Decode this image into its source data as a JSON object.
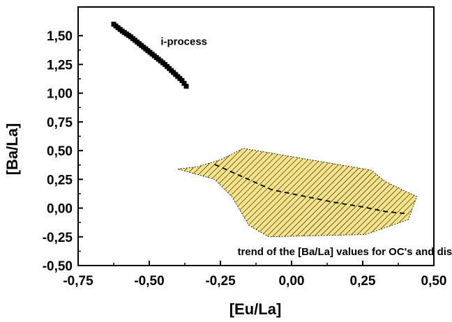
{
  "chart_data": {
    "type": "scatter",
    "title": "",
    "xlabel": "[Eu/La]",
    "ylabel": "[Ba/La]",
    "xlim": [
      -0.75,
      0.5
    ],
    "ylim": [
      -0.5,
      1.75
    ],
    "xticks": [
      -0.75,
      -0.5,
      -0.25,
      0.0,
      0.25,
      0.5
    ],
    "yticks": [
      -0.5,
      -0.25,
      0.0,
      0.25,
      0.5,
      0.75,
      1.0,
      1.25,
      1.5
    ],
    "xtick_labels": [
      "-0,75",
      "-0,50",
      "-0,25",
      "0,00",
      "0,25",
      "0,50"
    ],
    "ytick_labels": [
      "-0,50",
      "-0,25",
      "0,00",
      "0,25",
      "0,50",
      "0,75",
      "1,00",
      "1,25",
      "1,50"
    ],
    "grid": false,
    "series": [
      {
        "kind": "points",
        "marker": "square",
        "color": "#000000",
        "x": [
          -0.625,
          -0.61,
          -0.595,
          -0.58,
          -0.565,
          -0.55,
          -0.535,
          -0.52,
          -0.505,
          -0.49,
          -0.475,
          -0.46,
          -0.445,
          -0.43,
          -0.415,
          -0.4,
          -0.385,
          -0.37
        ],
        "y": [
          1.6,
          1.57,
          1.54,
          1.515,
          1.49,
          1.46,
          1.43,
          1.4,
          1.37,
          1.34,
          1.31,
          1.28,
          1.25,
          1.215,
          1.18,
          1.145,
          1.11,
          1.06
        ]
      },
      {
        "kind": "hatched_region",
        "fill": "#f5e38a",
        "hatch_color": "#000000",
        "x": [
          -0.4,
          -0.33,
          -0.25,
          -0.17,
          0.28,
          0.33,
          0.44,
          0.41,
          0.26,
          -0.08,
          -0.15,
          -0.21,
          -0.27
        ],
        "y": [
          0.34,
          0.36,
          0.42,
          0.52,
          0.33,
          0.23,
          0.1,
          -0.1,
          -0.23,
          -0.25,
          -0.15,
          0.1,
          0.25
        ]
      },
      {
        "kind": "dashed_trend",
        "color": "#000000",
        "x": [
          -0.27,
          -0.17,
          -0.07,
          0.05,
          0.15,
          0.25,
          0.33,
          0.41
        ],
        "y": [
          0.38,
          0.27,
          0.16,
          0.1,
          0.05,
          0.01,
          -0.03,
          -0.05
        ]
      }
    ],
    "annotations": [
      {
        "text": "i-process",
        "x": -0.46,
        "y": 1.42
      },
      {
        "text": "trend of the [Ba/La] values for OC's and disk stars",
        "x": -0.19,
        "y": -0.41
      }
    ]
  }
}
